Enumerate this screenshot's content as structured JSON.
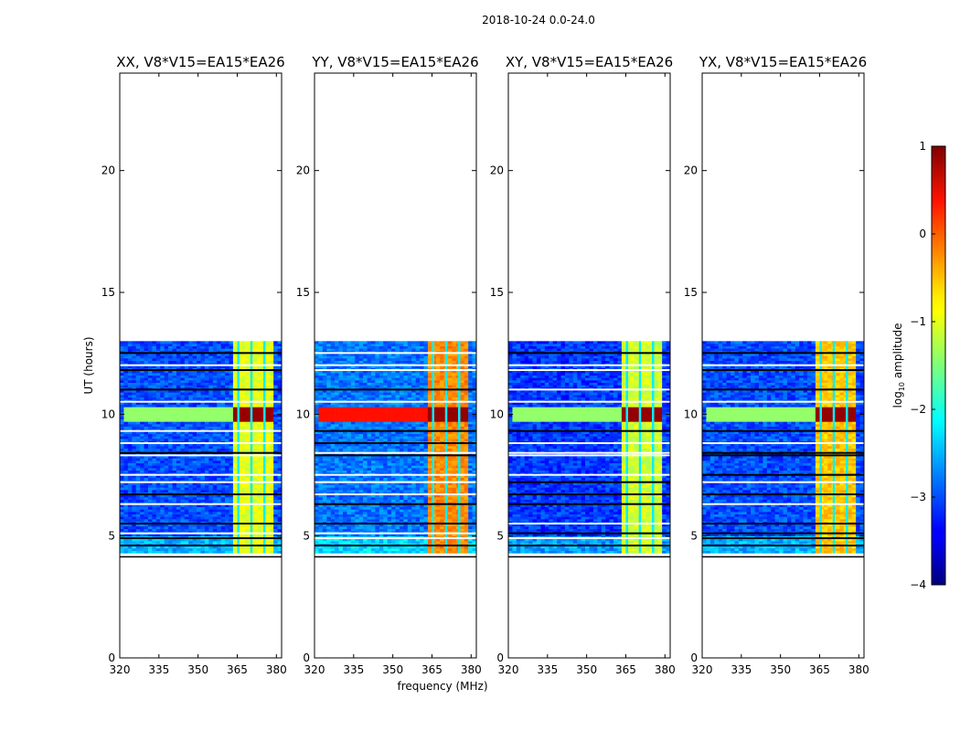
{
  "chart_data": {
    "type": "heatmap",
    "suptitle": "2018-10-24 0.0-24.0",
    "xlabel": "frequency (MHz)",
    "ylabel": "UT (hours)",
    "xlim": [
      320,
      382
    ],
    "ylim": [
      0,
      24
    ],
    "xticks": [
      "320",
      "335",
      "350",
      "365",
      "380"
    ],
    "xtick_values": [
      320,
      335,
      350,
      365,
      380
    ],
    "yticks": [
      "0",
      "5",
      "10",
      "15",
      "20"
    ],
    "ytick_values": [
      0,
      5,
      10,
      15,
      20
    ],
    "colorbar": {
      "label": "log10 amplitude",
      "label_base": "log",
      "label_sub": "10",
      "label_rest": " amplitude",
      "range": [
        -4,
        1
      ],
      "ticks": [
        "1",
        "0",
        "−1",
        "−2",
        "−3",
        "−4"
      ],
      "tick_values": [
        1,
        0,
        -1,
        -2,
        -3,
        -4
      ],
      "colormap": "jet"
    },
    "data_extent_hours": [
      4.3,
      13.0
    ],
    "strong_signal_hours": [
      9.6,
      10.2
    ],
    "band_mhz": [
      363,
      379
    ],
    "panels": [
      {
        "title": "XX, V8*V15=EA15*EA26",
        "background_level": -3.0,
        "band_level": -1.0
      },
      {
        "title": "YY, V8*V15=EA15*EA26",
        "background_level": -2.8,
        "band_level": -0.3
      },
      {
        "title": "XY, V8*V15=EA15*EA26",
        "background_level": -3.1,
        "band_level": -1.1
      },
      {
        "title": "YX, V8*V15=EA15*EA26",
        "background_level": -3.0,
        "band_level": -0.6
      }
    ]
  }
}
